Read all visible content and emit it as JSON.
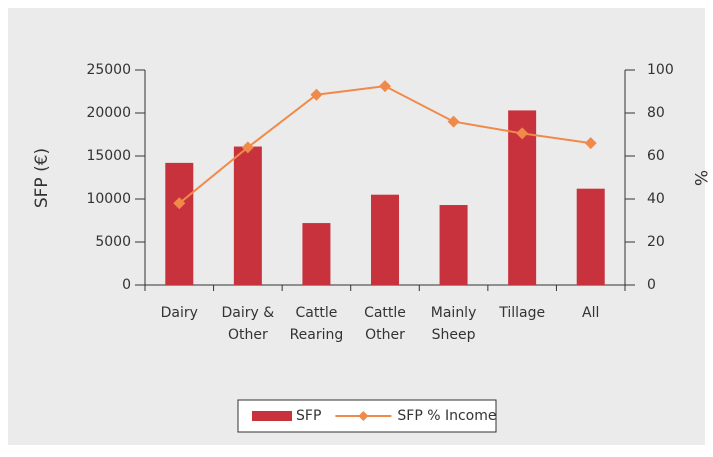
{
  "chart_data": {
    "type": "bar_line",
    "categories": [
      "Dairy",
      "Dairy & Other",
      "Cattle Rearing",
      "Cattle Other",
      "Mainly Sheep",
      "Tillage",
      "All"
    ],
    "series": [
      {
        "name": "SFP",
        "type": "bar",
        "color": "#c8323c",
        "values": [
          14200,
          16100,
          7200,
          10500,
          9300,
          20300,
          11200
        ]
      },
      {
        "name": "SFP % Income",
        "type": "line",
        "axis": "y2",
        "color": "#f08a4b",
        "values": [
          38,
          64,
          88.5,
          92.5,
          76,
          70.5,
          66
        ]
      }
    ],
    "ylabel": "SFP (€)",
    "y2label": "%",
    "ylim": [
      0,
      25000
    ],
    "yticks": [
      0,
      5000,
      10000,
      15000,
      20000,
      25000
    ],
    "y2lim": [
      0,
      100
    ],
    "y2ticks": [
      0,
      20,
      40,
      60,
      80,
      100
    ],
    "legend": "bottom"
  }
}
